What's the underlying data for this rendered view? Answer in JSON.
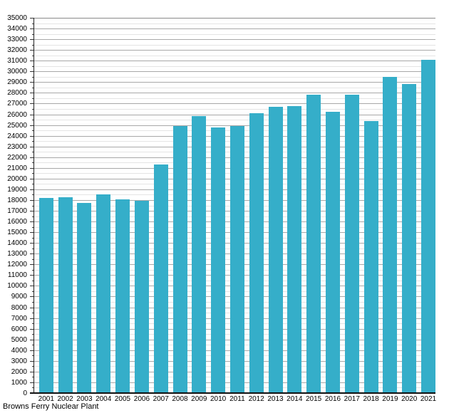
{
  "chart_data": {
    "type": "bar",
    "title": "",
    "caption": "Browns Ferry Nuclear Plant",
    "xlabel": "",
    "ylabel": "",
    "categories": [
      "2001",
      "2002",
      "2003",
      "2004",
      "2005",
      "2006",
      "2007",
      "2008",
      "2009",
      "2010",
      "2011",
      "2012",
      "2013",
      "2014",
      "2015",
      "2016",
      "2017",
      "2018",
      "2019",
      "2020",
      "2021"
    ],
    "values": [
      18200,
      18250,
      17750,
      18550,
      18050,
      17950,
      21300,
      24900,
      25850,
      24800,
      24900,
      26100,
      26700,
      26800,
      27800,
      26250,
      27850,
      25400,
      29500,
      28800,
      31100
    ],
    "ylim": [
      0,
      35000
    ],
    "y_major_step": 1000,
    "y_minor_step": 500,
    "grid": "horizontal-only",
    "legend": "none",
    "colors": {
      "bar": "#35aec9",
      "major_gridline": "#a8a8a8",
      "minor_gridline": "#e4e4e4",
      "axis": "#222222",
      "text": "#000000"
    }
  }
}
